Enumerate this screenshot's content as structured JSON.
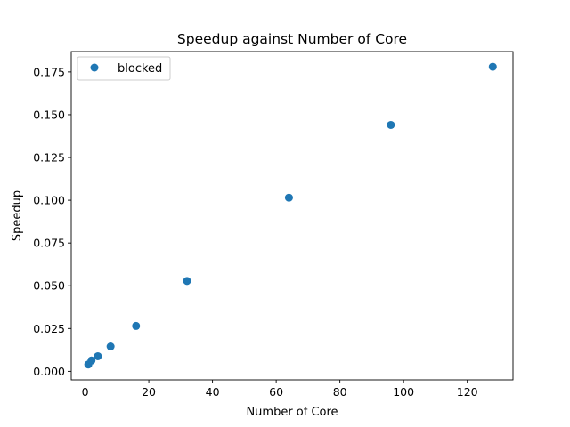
{
  "chart_data": {
    "type": "scatter",
    "title": "Speedup against Number of Core",
    "xlabel": "Number of Core",
    "ylabel": "Speedup",
    "xlim": [
      -4.35,
      134.35
    ],
    "ylim": [
      -0.005,
      0.1869
    ],
    "xticks": [
      0,
      20,
      40,
      60,
      80,
      100,
      120
    ],
    "xtick_labels": [
      "0",
      "20",
      "40",
      "60",
      "80",
      "100",
      "120"
    ],
    "yticks": [
      0,
      0.025,
      0.05,
      0.075,
      0.1,
      0.125,
      0.15,
      0.175
    ],
    "ytick_labels": [
      "0.000",
      "0.025",
      "0.050",
      "0.075",
      "0.100",
      "0.125",
      "0.150",
      "0.175"
    ],
    "grid": false,
    "legend_position": "top-left",
    "series": [
      {
        "name": "blocked",
        "color": "#1f77b4",
        "x": [
          1,
          2,
          4,
          8,
          16,
          32,
          64,
          96,
          128
        ],
        "y": [
          0.004,
          0.0063,
          0.0088,
          0.0145,
          0.0265,
          0.0528,
          0.1015,
          0.144,
          0.178
        ]
      }
    ]
  }
}
